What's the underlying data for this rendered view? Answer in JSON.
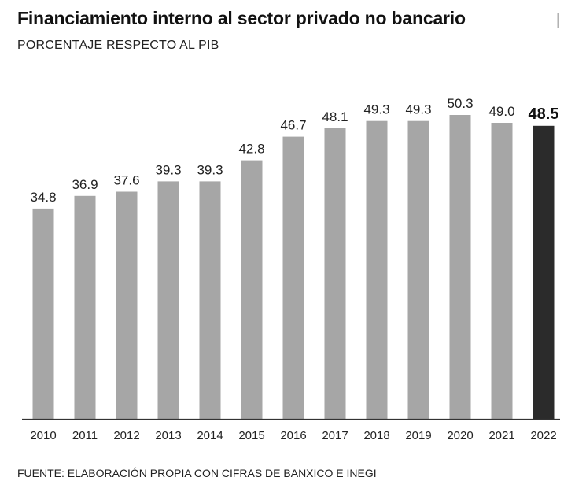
{
  "title": "Financiamiento interno al sector privado no bancario",
  "title_separator": "|",
  "subtitle": "PORCENTAJE RESPECTO AL PIB",
  "source": "FUENTE: ELABORACIÓN PROPIA CON CIFRAS DE BANXICO E INEGI",
  "colors": {
    "bar": "#a6a6a6",
    "bar_highlight": "#2b2b2b",
    "baseline": "#333333"
  },
  "chart_data": {
    "type": "bar",
    "title": "Financiamiento interno al sector privado no bancario",
    "subtitle": "PORCENTAJE RESPECTO AL PIB",
    "xlabel": "",
    "ylabel": "",
    "categories": [
      "2010",
      "2011",
      "2012",
      "2013",
      "2014",
      "2015",
      "2016",
      "2017",
      "2018",
      "2019",
      "2020",
      "2021",
      "2022"
    ],
    "values": [
      34.8,
      36.9,
      37.6,
      39.3,
      39.3,
      42.8,
      46.7,
      48.1,
      49.3,
      49.3,
      50.3,
      49.0,
      48.5
    ],
    "labels": [
      "34.8",
      "36.9",
      "37.6",
      "39.3",
      "39.3",
      "42.8",
      "46.7",
      "48.1",
      "49.3",
      "49.3",
      "50.3",
      "49.0",
      "48.5"
    ],
    "highlight_index": 12,
    "ylim": [
      0,
      50.3
    ],
    "grid": false,
    "legend": "none"
  }
}
